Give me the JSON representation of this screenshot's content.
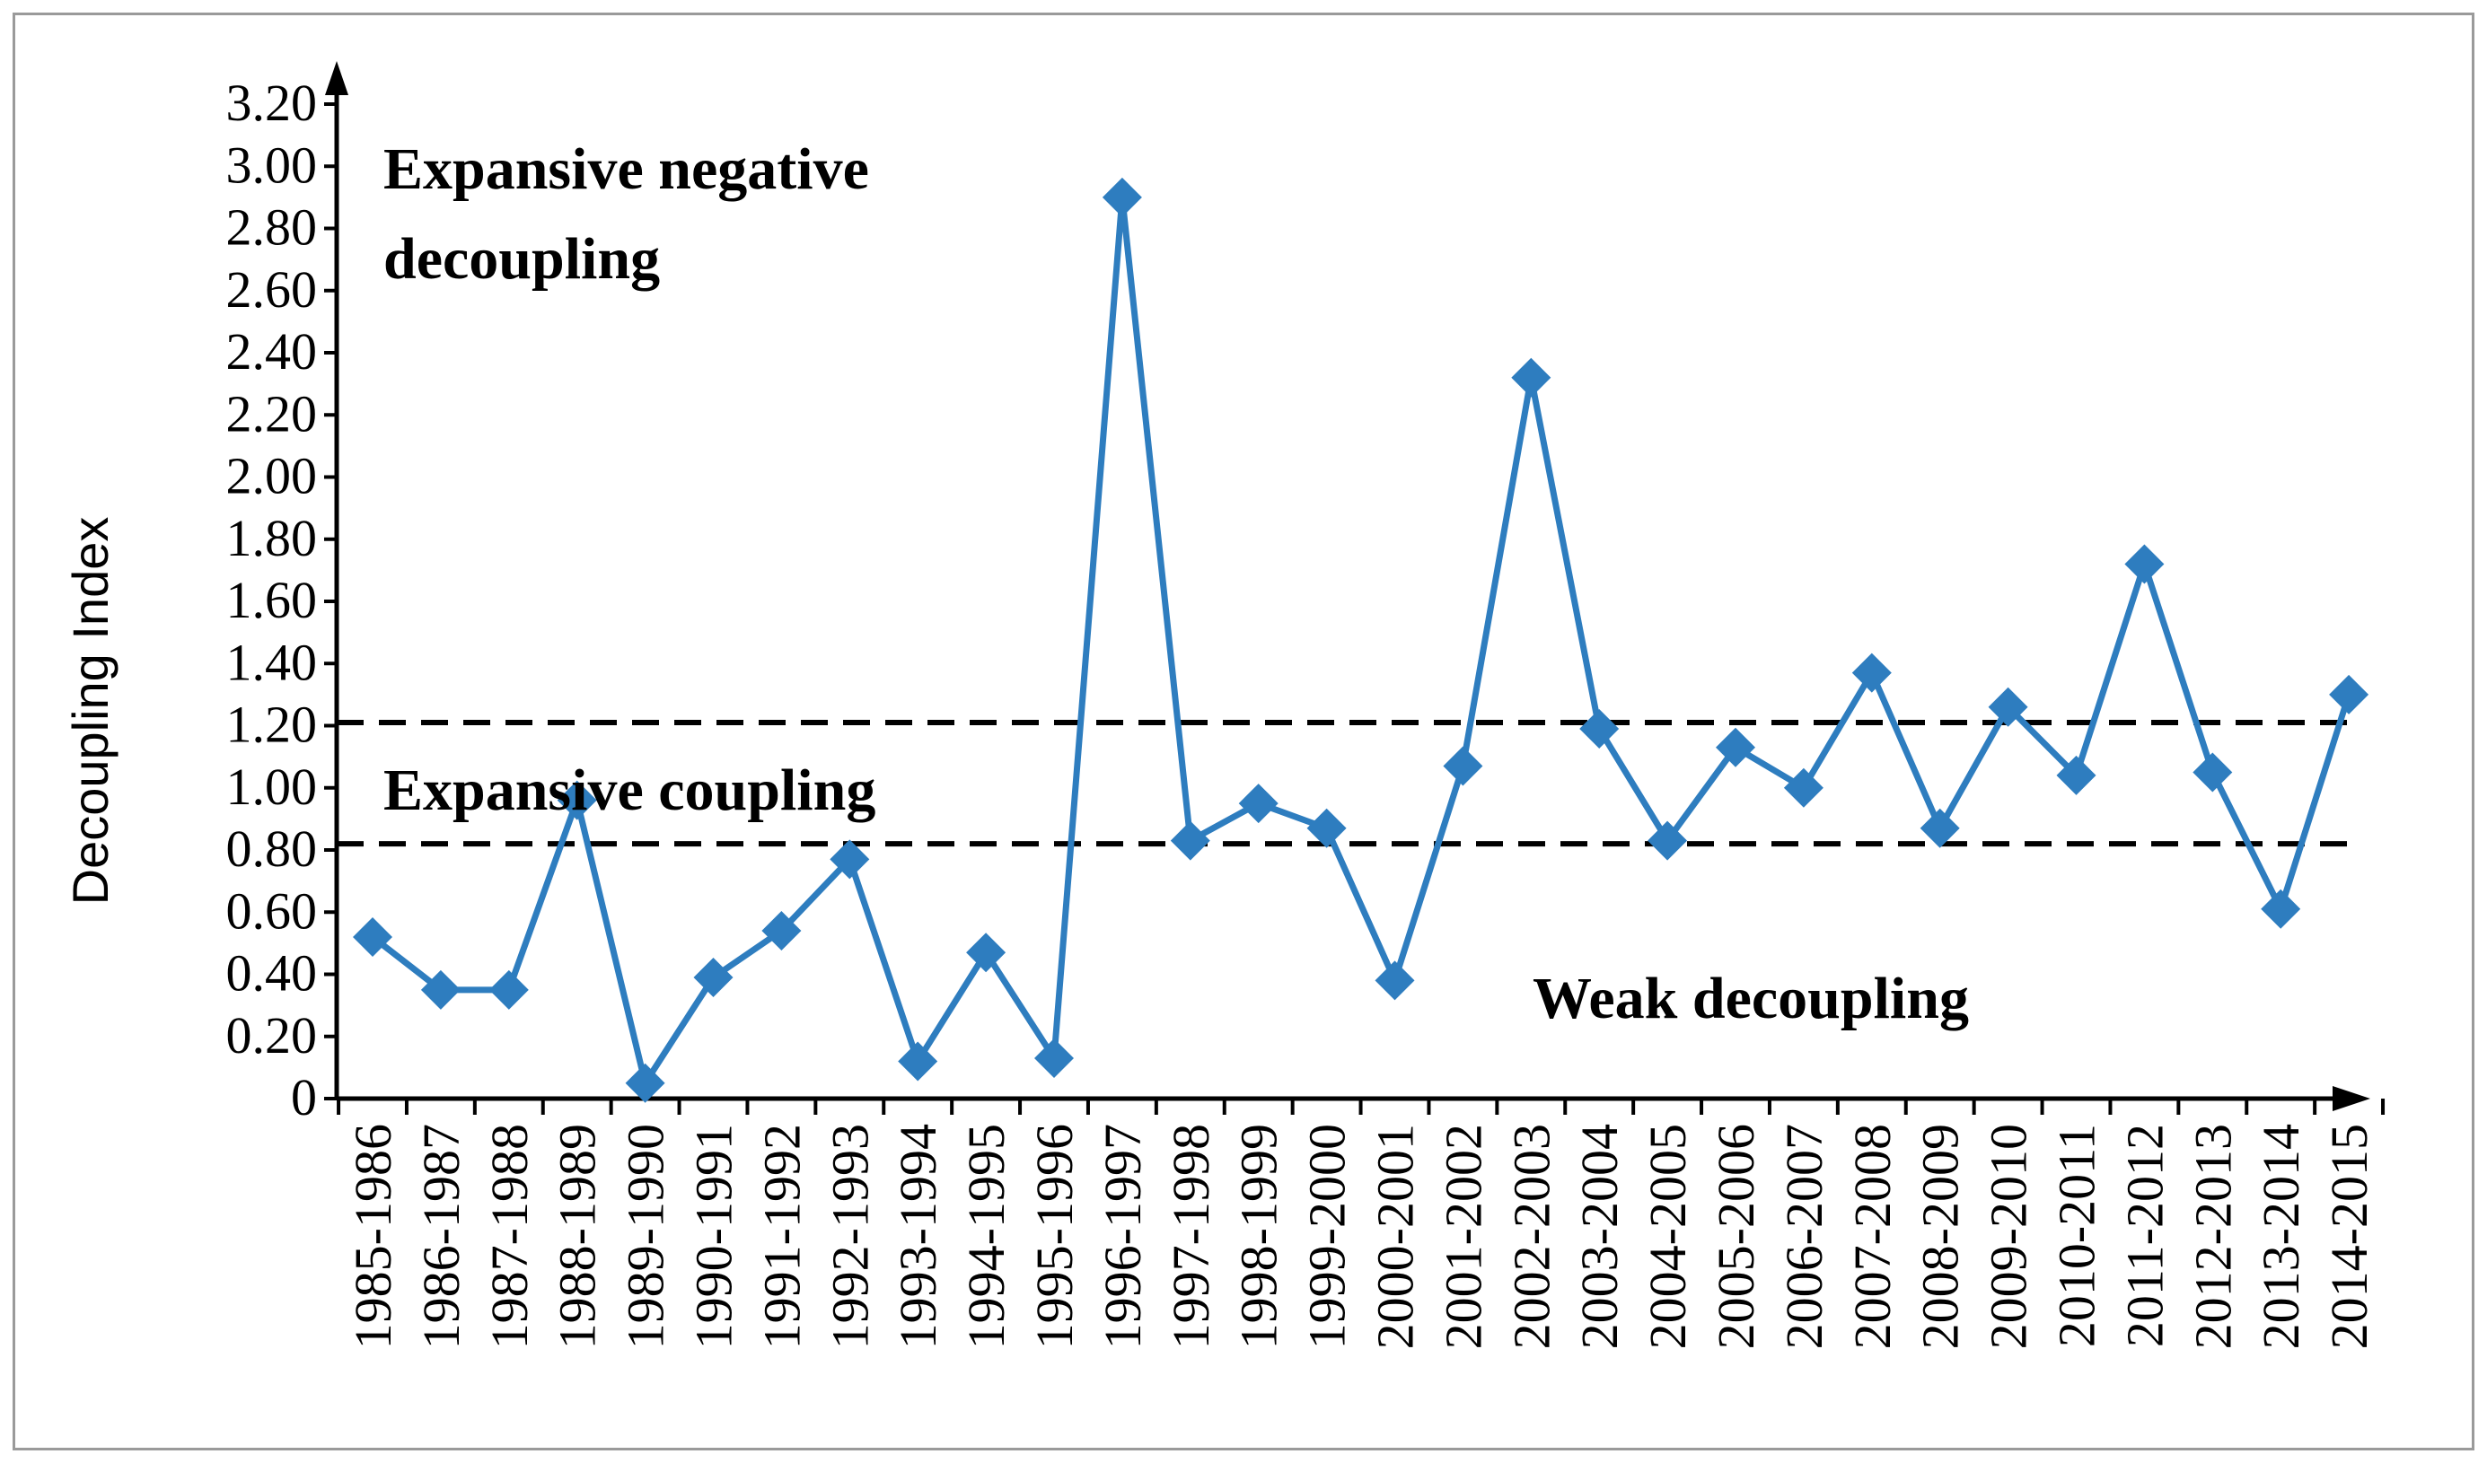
{
  "chart_data": {
    "type": "line",
    "title": "",
    "xlabel": "",
    "ylabel": "Decoupling Index",
    "ylim": [
      0,
      3.2
    ],
    "yticks": [
      "0",
      "0.20",
      "0.40",
      "0.60",
      "0.80",
      "1.00",
      "1.20",
      "1.40",
      "1.60",
      "1.80",
      "2.00",
      "2.20",
      "2.40",
      "2.60",
      "2.80",
      "3.00",
      "3.20"
    ],
    "categories": [
      "1985-1986",
      "1986-1987",
      "1987-1988",
      "1988-1989",
      "1989-1990",
      "1990-1991",
      "1991-1992",
      "1992-1993",
      "1993-1994",
      "1994-1995",
      "1995-1996",
      "1996-1997",
      "1997-1998",
      "1998-1999",
      "1999-2000",
      "2000-2001",
      "2001-2002",
      "2002-2003",
      "2003-2004",
      "2004-2005",
      "2005-2006",
      "2006-2007",
      "2007-2008",
      "2008-2009",
      "2009-2010",
      "2010-2011",
      "2011-2012",
      "2012-2013",
      "2013-2014",
      "2014-2015"
    ],
    "series": [
      {
        "name": "Decoupling Index",
        "color": "#2E7DBF",
        "marker": "diamond",
        "values": [
          0.52,
          0.35,
          0.35,
          0.96,
          0.05,
          0.39,
          0.54,
          0.77,
          0.12,
          0.47,
          0.13,
          2.9,
          0.83,
          0.95,
          0.87,
          0.38,
          1.07,
          2.32,
          1.19,
          0.83,
          1.13,
          1.0,
          1.37,
          0.87,
          1.26,
          1.04,
          1.72,
          1.05,
          0.61,
          1.3
        ]
      }
    ],
    "thresholds": [
      {
        "value": 0.82,
        "style": "dashed",
        "color": "#000000"
      },
      {
        "value": 1.21,
        "style": "dashed",
        "color": "#000000"
      }
    ],
    "annotations": {
      "top_line1": "Expansive negative",
      "top_line2": "decoupling",
      "middle": "Expansive coupling",
      "bottom": "Weak decoupling"
    }
  }
}
